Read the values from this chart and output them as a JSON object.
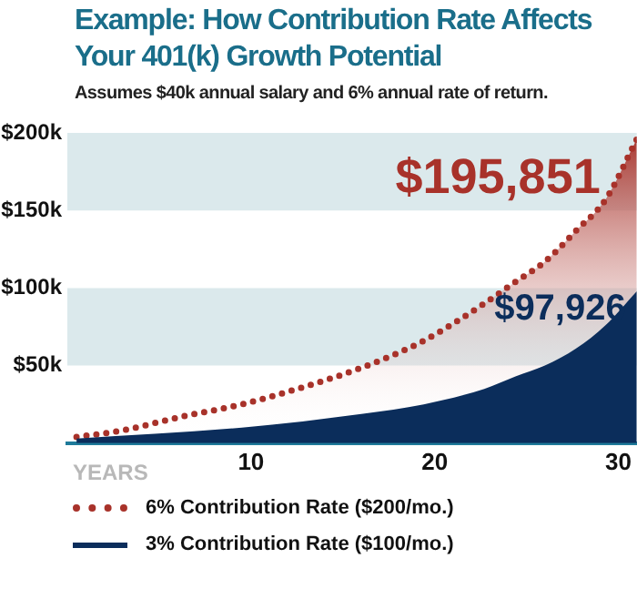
{
  "chart_data": {
    "type": "area",
    "title": "Example: How Contribution Rate Affects Your 401(k) Growth Potential",
    "subtitle": "Assumes $40k annual salary and 6% annual rate of return.",
    "xlabel": "YEARS",
    "xlim": [
      0,
      31
    ],
    "xticks": [
      10,
      20,
      30
    ],
    "ylim": [
      0,
      200
    ],
    "yticks": [
      {
        "value": 50,
        "label": "$50k"
      },
      {
        "value": 100,
        "label": "$100k"
      },
      {
        "value": 150,
        "label": "$150k"
      },
      {
        "value": 200,
        "label": "$200k"
      }
    ],
    "bands": [
      {
        "axis": "y",
        "from": 50,
        "to": 100,
        "color": "#dbe9ec"
      },
      {
        "axis": "y",
        "from": 150,
        "to": 200,
        "color": "#dbe9ec"
      }
    ],
    "series": [
      {
        "name": "6% Contribution Rate ($200/mo.)",
        "color": "#a8322a",
        "line_style": "dotted",
        "x": [
          0.5,
          2.9,
          6.2,
          9.5,
          12.8,
          16.1,
          19.4,
          22.7,
          24.4,
          26,
          27.7,
          29.3,
          31
        ],
        "values": [
          4,
          8,
          17,
          25,
          36,
          49,
          66,
          90,
          104,
          117,
          137,
          157,
          195.851
        ]
      },
      {
        "name": "3% Contribution Rate ($100/mo.)",
        "color": "#0b2d5b",
        "line_style": "solid",
        "x": [
          0.5,
          9.5,
          16.1,
          19.4,
          22.7,
          24.4,
          26,
          27.7,
          29.3,
          31
        ],
        "values": [
          3,
          10,
          19,
          25,
          35,
          43,
          50,
          61,
          76,
          97.926
        ]
      }
    ],
    "annotations": [
      {
        "text": "$195,851",
        "x": 31,
        "y": 195.851
      },
      {
        "text": "$97,926",
        "x": 31,
        "y": 97.926
      }
    ],
    "legend": "bottom",
    "marker": "none",
    "grid": false
  }
}
